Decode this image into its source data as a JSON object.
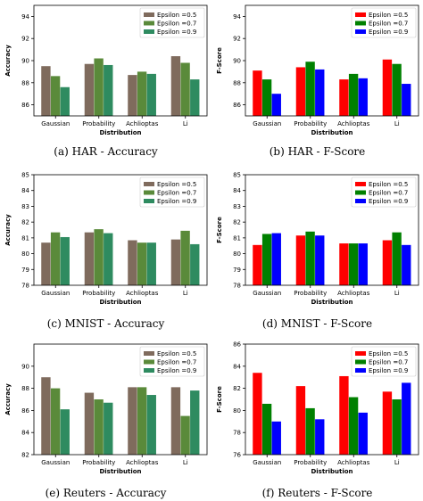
{
  "chart_data": [
    {
      "type": "bar",
      "caption": "(a) HAR - Accuracy",
      "categories": [
        "Gaussian",
        "Probability",
        "Achlioptas",
        "Li"
      ],
      "series": [
        {
          "name": "Epsilon =0.5",
          "color": "#7f6b5d",
          "values": [
            89.5,
            89.7,
            88.7,
            90.4
          ]
        },
        {
          "name": "Epsilon =0.7",
          "color": "#5a8a3a",
          "values": [
            88.6,
            90.2,
            89.0,
            89.8
          ]
        },
        {
          "name": "Epsilon =0.9",
          "color": "#2e8b60",
          "values": [
            87.6,
            89.6,
            88.8,
            88.3
          ]
        }
      ],
      "xlabel": "Distribution",
      "ylabel": "Accuracy",
      "ylim": [
        85,
        95
      ],
      "yticks": [
        86,
        88,
        90,
        92,
        94
      ],
      "legend": "top-right"
    },
    {
      "type": "bar",
      "caption": "(b) HAR - F-Score",
      "categories": [
        "Gaussian",
        "Probability",
        "Achlioptas",
        "Li"
      ],
      "series": [
        {
          "name": "Epsilon =0.5",
          "color": "#ff0000",
          "values": [
            89.1,
            89.4,
            88.3,
            90.1
          ]
        },
        {
          "name": "Epsilon =0.7",
          "color": "#008000",
          "values": [
            88.3,
            89.9,
            88.8,
            89.7
          ]
        },
        {
          "name": "Epsilon =0.9",
          "color": "#0000ff",
          "values": [
            87.0,
            89.2,
            88.4,
            87.9
          ]
        }
      ],
      "xlabel": "Distribution",
      "ylabel": "F-Score",
      "ylim": [
        85,
        95
      ],
      "yticks": [
        86,
        88,
        90,
        92,
        94
      ],
      "legend": "top-right"
    },
    {
      "type": "bar",
      "caption": "(c) MNIST - Accuracy",
      "categories": [
        "Gaussian",
        "Probability",
        "Achlioptas",
        "Li"
      ],
      "series": [
        {
          "name": "Epsilon =0.5",
          "color": "#7f6b5d",
          "values": [
            80.7,
            81.35,
            80.85,
            80.9
          ]
        },
        {
          "name": "Epsilon =0.7",
          "color": "#5a8a3a",
          "values": [
            81.35,
            81.55,
            80.7,
            81.45
          ]
        },
        {
          "name": "Epsilon =0.9",
          "color": "#2e8b60",
          "values": [
            81.05,
            81.3,
            80.7,
            80.6
          ]
        }
      ],
      "xlabel": "Distribution",
      "ylabel": "Accuracy",
      "ylim": [
        78,
        85
      ],
      "yticks": [
        78,
        79,
        80,
        81,
        82,
        83,
        84,
        85
      ],
      "legend": "top-right"
    },
    {
      "type": "bar",
      "caption": "(d) MNIST - F-Score",
      "categories": [
        "Gaussian",
        "Probability",
        "Achlioptas",
        "Li"
      ],
      "series": [
        {
          "name": "Epsilon =0.5",
          "color": "#ff0000",
          "values": [
            80.55,
            81.15,
            80.65,
            80.85
          ]
        },
        {
          "name": "Epsilon =0.7",
          "color": "#008000",
          "values": [
            81.25,
            81.4,
            80.65,
            81.35
          ]
        },
        {
          "name": "Epsilon =0.9",
          "color": "#0000ff",
          "values": [
            81.3,
            81.15,
            80.65,
            80.55
          ]
        }
      ],
      "xlabel": "Distribution",
      "ylabel": "F-Score",
      "ylim": [
        78,
        85
      ],
      "yticks": [
        78,
        79,
        80,
        81,
        82,
        83,
        84,
        85
      ],
      "legend": "top-right"
    },
    {
      "type": "bar",
      "caption": "(e) Reuters - Accuracy",
      "categories": [
        "Gaussian",
        "Probability",
        "Achlioptas",
        "Li"
      ],
      "series": [
        {
          "name": "Epsilon =0.5",
          "color": "#7f6b5d",
          "values": [
            89.0,
            87.6,
            88.1,
            88.1
          ]
        },
        {
          "name": "Epsilon =0.7",
          "color": "#5a8a3a",
          "values": [
            88.0,
            87.0,
            88.1,
            85.5
          ]
        },
        {
          "name": "Epsilon =0.9",
          "color": "#2e8b60",
          "values": [
            86.1,
            86.7,
            87.4,
            87.8
          ]
        }
      ],
      "xlabel": "Distribution",
      "ylabel": "Accuracy",
      "ylim": [
        82,
        92
      ],
      "yticks": [
        82,
        84,
        86,
        88,
        90
      ],
      "legend": "top-right"
    },
    {
      "type": "bar",
      "caption": "(f) Reuters - F-Score",
      "categories": [
        "Gaussian",
        "Probability",
        "Achlioptas",
        "Li"
      ],
      "series": [
        {
          "name": "Epsilon =0.5",
          "color": "#ff0000",
          "values": [
            83.4,
            82.2,
            83.1,
            81.7
          ]
        },
        {
          "name": "Epsilon =0.7",
          "color": "#008000",
          "values": [
            80.6,
            80.2,
            81.2,
            81.0
          ]
        },
        {
          "name": "Epsilon =0.9",
          "color": "#0000ff",
          "values": [
            79.0,
            79.2,
            79.8,
            82.5
          ]
        }
      ],
      "xlabel": "Distribution",
      "ylabel": "F-Score",
      "ylim": [
        76,
        86
      ],
      "yticks": [
        76,
        78,
        80,
        82,
        84,
        86
      ],
      "legend": "top-right"
    }
  ]
}
